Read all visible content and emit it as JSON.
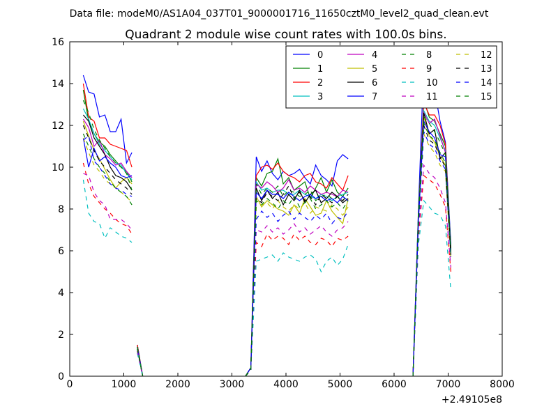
{
  "header": {
    "subtitle": "Data file: modeM0/AS1A04_037T01_9000001716_11650cztM0_level2_quad_clean.evt"
  },
  "chart_data": {
    "type": "line",
    "title": "Quadrant 2 module wise count rates with 100.0s bins.",
    "subtitle": "Data file: modeM0/AS1A04_037T01_9000001716_11650cztM0_level2_quad_clean.evt",
    "xlabel": "",
    "ylabel": "",
    "x_offset_label": "+2.49105e8",
    "xlim": [
      0,
      8000
    ],
    "ylim": [
      0,
      16
    ],
    "xticks": [
      0,
      1000,
      2000,
      3000,
      4000,
      5000,
      6000,
      7000,
      8000
    ],
    "yticks": [
      0,
      2,
      4,
      6,
      8,
      10,
      12,
      14,
      16
    ],
    "grid": false,
    "legend_position": "top-right",
    "legend_columns": 4,
    "segments": [
      {
        "x": [
          250,
          350,
          450,
          550,
          650,
          750,
          850,
          950,
          1050,
          1150
        ]
      },
      {
        "x": [
          1250,
          1350
        ]
      },
      {
        "x": [
          3250,
          3350,
          3450,
          3550,
          3650,
          3750,
          3850,
          3950,
          4050,
          4150,
          4250,
          4350,
          4450,
          4550,
          4650,
          4750,
          4850,
          4950,
          5050,
          5150
        ]
      },
      {
        "x": [
          5250
        ]
      },
      {
        "x": [
          6350,
          6450,
          6550,
          6650,
          6750,
          6850,
          6950,
          7050
        ]
      }
    ],
    "series": [
      {
        "name": "0",
        "color": "#0000ff",
        "dash": "solid",
        "values": [
          [
            14.4,
            13.6,
            13.5,
            12.4,
            12.5,
            11.7,
            11.7,
            12.3,
            10.2,
            10.7
          ],
          [
            1.5,
            0
          ],
          [
            0,
            0.4,
            10.5,
            9.8,
            10.3,
            9.7,
            9.4,
            9.8,
            9.6,
            9.7,
            9.9,
            9.5,
            9.2,
            10.1,
            9.6,
            9.4,
            9.1,
            10.3,
            10.6,
            10.4
          ],
          [
            0
          ],
          [
            0,
            8.0,
            15.0,
            13.8,
            13.7,
            12.2,
            11.2,
            6.3
          ]
        ]
      },
      {
        "name": "1",
        "color": "#008000",
        "dash": "solid",
        "values": [
          [
            13.7,
            12.2,
            11.6,
            11.2,
            11.0,
            10.6,
            10.3,
            10.0,
            9.8,
            9.3
          ],
          [
            1.5,
            0
          ],
          [
            0,
            0.4,
            9.5,
            9.1,
            9.7,
            9.8,
            10.4,
            9.2,
            9.5,
            8.9,
            9.1,
            9.3,
            8.5,
            9.0,
            9.5,
            8.8,
            9.4,
            8.8,
            8.6,
            9.0
          ],
          [
            0
          ],
          [
            0,
            7.8,
            13.2,
            12.4,
            12.2,
            11.6,
            11.0,
            6.1
          ]
        ]
      },
      {
        "name": "2",
        "color": "#ff0000",
        "dash": "solid",
        "values": [
          [
            14.0,
            12.4,
            12.2,
            11.4,
            11.4,
            11.1,
            11.0,
            10.9,
            10.8,
            10.0
          ],
          [
            1.5,
            0
          ],
          [
            0,
            0.4,
            9.6,
            10.0,
            10.1,
            9.9,
            10.2,
            9.8,
            9.6,
            9.5,
            9.3,
            9.6,
            9.7,
            9.3,
            9.2,
            9.0,
            9.5,
            9.2,
            8.9,
            9.6
          ],
          [
            0
          ],
          [
            0,
            7.6,
            13.1,
            12.5,
            12.5,
            12.0,
            11.1,
            6.0
          ]
        ]
      },
      {
        "name": "3",
        "color": "#00bfbf",
        "dash": "solid",
        "values": [
          [
            12.8,
            12.3,
            11.6,
            11.1,
            10.8,
            10.5,
            10.2,
            10.1,
            9.7,
            9.4
          ],
          [
            1.4,
            0
          ],
          [
            0,
            0.4,
            9.3,
            8.9,
            9.0,
            8.8,
            8.9,
            8.9,
            8.7,
            8.7,
            8.9,
            8.7,
            8.6,
            8.5,
            8.7,
            8.6,
            8.4,
            8.6,
            8.7,
            8.8
          ],
          [
            0
          ],
          [
            0,
            7.7,
            12.7,
            12.2,
            12.0,
            11.4,
            10.8,
            6.1
          ]
        ]
      },
      {
        "name": "4",
        "color": "#bf00bf",
        "dash": "solid",
        "values": [
          [
            12.3,
            11.9,
            11.0,
            11.3,
            10.6,
            10.4,
            10.1,
            10.2,
            9.8,
            9.5
          ],
          [
            1.4,
            0
          ],
          [
            0,
            0.4,
            9.2,
            9.0,
            9.3,
            9.1,
            8.8,
            9.0,
            9.4,
            8.9,
            9.0,
            8.8,
            9.1,
            8.9,
            8.7,
            8.8,
            8.7,
            8.6,
            8.9,
            8.8
          ],
          [
            0
          ],
          [
            0,
            7.6,
            12.6,
            12.1,
            12.3,
            11.5,
            10.7,
            6.0
          ]
        ]
      },
      {
        "name": "5",
        "color": "#bfbf00",
        "dash": "solid",
        "values": [
          [
            12.2,
            11.5,
            10.8,
            10.4,
            9.9,
            9.4,
            9.0,
            9.3,
            9.5,
            9.2
          ],
          [
            1.4,
            0
          ],
          [
            0,
            0.4,
            8.6,
            8.1,
            8.4,
            8.2,
            8.0,
            7.9,
            7.7,
            8.2,
            7.8,
            8.5,
            8.1,
            7.7,
            7.8,
            8.4,
            7.9,
            7.6,
            7.3,
            8.5
          ],
          [
            0
          ],
          [
            0,
            7.5,
            12.4,
            11.5,
            11.2,
            10.5,
            10.1,
            5.9
          ]
        ]
      },
      {
        "name": "6",
        "color": "#000000",
        "dash": "solid",
        "values": [
          [
            12.5,
            12.2,
            11.4,
            11.0,
            10.6,
            10.0,
            9.6,
            9.5,
            9.3,
            8.9
          ],
          [
            1.4,
            0
          ],
          [
            0,
            0.4,
            9.0,
            8.4,
            8.9,
            8.5,
            8.8,
            8.2,
            8.7,
            8.4,
            8.9,
            8.3,
            8.7,
            8.9,
            8.3,
            8.5,
            8.8,
            8.6,
            8.3,
            8.5
          ],
          [
            0
          ],
          [
            0,
            7.5,
            12.6,
            11.6,
            11.8,
            10.4,
            10.7,
            6.0
          ]
        ]
      },
      {
        "name": "7",
        "color": "#0000ff",
        "dash": "solid",
        "values": [
          [
            11.4,
            10.0,
            10.9,
            10.3,
            10.5,
            10.2,
            10.0,
            9.6,
            9.5,
            9.6
          ],
          [
            1.4,
            0
          ],
          [
            0,
            0.4,
            8.8,
            8.5,
            8.9,
            8.7,
            8.7,
            8.5,
            8.8,
            8.6,
            8.4,
            8.6,
            8.7,
            8.5,
            8.6,
            8.4,
            8.5,
            8.3,
            8.6,
            8.4
          ],
          [
            0
          ],
          [
            0,
            7.4,
            12.2,
            11.7,
            11.4,
            10.6,
            10.5,
            5.9
          ]
        ]
      },
      {
        "name": "8",
        "color": "#008000",
        "dash": "dashed",
        "values": [
          [
            13.2,
            12.6,
            11.8,
            11.3,
            10.9,
            10.5,
            10.2,
            10.0,
            9.7,
            8.9
          ],
          [
            1.4,
            0
          ],
          [
            0,
            0.4,
            9.2,
            8.7,
            9.0,
            8.8,
            9.1,
            8.6,
            8.9,
            8.8,
            8.6,
            8.7,
            8.9,
            8.4,
            8.6,
            8.7,
            8.5,
            8.6,
            8.4,
            8.7
          ],
          [
            0
          ],
          [
            0,
            7.6,
            12.4,
            12.1,
            11.7,
            11.2,
            10.6,
            6.0
          ]
        ]
      },
      {
        "name": "9",
        "color": "#ff0000",
        "dash": "dashed",
        "values": [
          [
            10.2,
            9.2,
            8.6,
            8.3,
            8.0,
            7.8,
            7.5,
            7.3,
            7.2,
            6.8
          ],
          [
            1.2,
            0
          ],
          [
            0,
            0.3,
            6.4,
            6.2,
            6.8,
            6.5,
            6.7,
            6.6,
            6.3,
            6.8,
            6.5,
            6.7,
            6.4,
            6.3,
            6.6,
            6.5,
            6.2,
            6.6,
            6.5,
            6.7
          ],
          [
            0
          ],
          [
            0,
            6.6,
            9.6,
            9.4,
            9.2,
            8.7,
            8.1,
            5.0
          ]
        ]
      },
      {
        "name": "10",
        "color": "#00bfbf",
        "dash": "dashed",
        "values": [
          [
            9.4,
            7.8,
            7.4,
            7.3,
            6.6,
            7.1,
            6.9,
            6.7,
            6.6,
            6.4
          ],
          [
            1.1,
            0
          ],
          [
            0,
            0.3,
            5.5,
            5.6,
            5.7,
            5.8,
            5.5,
            5.9,
            5.7,
            5.6,
            5.5,
            5.7,
            5.8,
            5.6,
            5.0,
            5.5,
            5.7,
            5.3,
            5.6,
            6.3
          ],
          [
            0
          ],
          [
            0,
            6.3,
            8.4,
            8.1,
            7.8,
            7.7,
            7.2,
            4.1
          ]
        ]
      },
      {
        "name": "11",
        "color": "#bf00bf",
        "dash": "dashed",
        "values": [
          [
            9.7,
            9.6,
            8.8,
            8.4,
            8.2,
            7.5,
            7.5,
            7.5,
            7.3,
            7.0
          ],
          [
            1.2,
            0
          ],
          [
            0,
            0.3,
            7.0,
            6.9,
            7.2,
            6.9,
            7.1,
            6.8,
            7.0,
            7.3,
            6.9,
            7.1,
            6.8,
            7.0,
            7.2,
            6.9,
            6.7,
            7.0,
            7.1,
            7.4
          ],
          [
            0
          ],
          [
            0,
            6.8,
            10.1,
            9.7,
            9.5,
            9.0,
            8.3,
            5.2
          ]
        ]
      },
      {
        "name": "12",
        "color": "#bfbf00",
        "dash": "dashed",
        "values": [
          [
            11.4,
            10.7,
            10.1,
            9.8,
            9.4,
            9.2,
            9.0,
            8.8,
            8.6,
            8.3
          ],
          [
            1.3,
            0
          ],
          [
            0,
            0.3,
            8.1,
            8.2,
            8.3,
            8.0,
            8.4,
            8.1,
            7.9,
            8.2,
            8.0,
            8.3,
            7.8,
            8.1,
            8.0,
            7.9,
            8.2,
            8.0,
            7.7,
            8.1
          ],
          [
            0
          ],
          [
            0,
            7.2,
            11.6,
            11.0,
            10.7,
            10.1,
            9.8,
            5.6
          ]
        ]
      },
      {
        "name": "13",
        "color": "#000000",
        "dash": "dashed",
        "values": [
          [
            12.0,
            11.4,
            10.8,
            10.3,
            10.0,
            9.7,
            9.4,
            9.2,
            9.0,
            8.7
          ],
          [
            1.3,
            0
          ],
          [
            0,
            0.3,
            8.5,
            8.3,
            8.8,
            8.6,
            8.4,
            8.7,
            9.1,
            8.5,
            8.8,
            8.4,
            8.6,
            8.2,
            8.7,
            8.5,
            8.3,
            8.6,
            8.4,
            8.7
          ],
          [
            0
          ],
          [
            0,
            7.3,
            12.0,
            11.3,
            11.1,
            10.5,
            10.0,
            5.8
          ]
        ]
      },
      {
        "name": "14",
        "color": "#0000ff",
        "dash": "dashed",
        "values": [
          [
            11.3,
            11.5,
            10.3,
            10.0,
            9.6,
            9.2,
            9.0,
            8.9,
            8.7,
            8.6
          ],
          [
            1.3,
            0
          ],
          [
            0,
            0.3,
            7.5,
            7.9,
            7.6,
            7.8,
            7.4,
            7.7,
            7.9,
            7.5,
            7.8,
            7.6,
            7.4,
            7.7,
            7.5,
            7.8,
            7.3,
            7.6,
            7.5,
            7.9
          ],
          [
            0
          ],
          [
            0,
            7.1,
            11.7,
            11.1,
            10.9,
            10.3,
            9.9,
            5.7
          ]
        ]
      },
      {
        "name": "15",
        "color": "#008000",
        "dash": "dashed",
        "values": [
          [
            11.6,
            11.0,
            10.4,
            10.0,
            9.7,
            9.3,
            9.0,
            8.8,
            8.6,
            8.2
          ],
          [
            1.3,
            0
          ],
          [
            0,
            0.3,
            8.4,
            8.2,
            8.5,
            8.3,
            8.0,
            8.4,
            8.2,
            8.6,
            8.1,
            8.3,
            8.5,
            8.0,
            8.2,
            8.4,
            8.1,
            8.3,
            8.0,
            8.4
          ],
          [
            0
          ],
          [
            0,
            7.4,
            12.1,
            11.5,
            11.3,
            10.7,
            10.2,
            5.9
          ]
        ]
      }
    ]
  }
}
